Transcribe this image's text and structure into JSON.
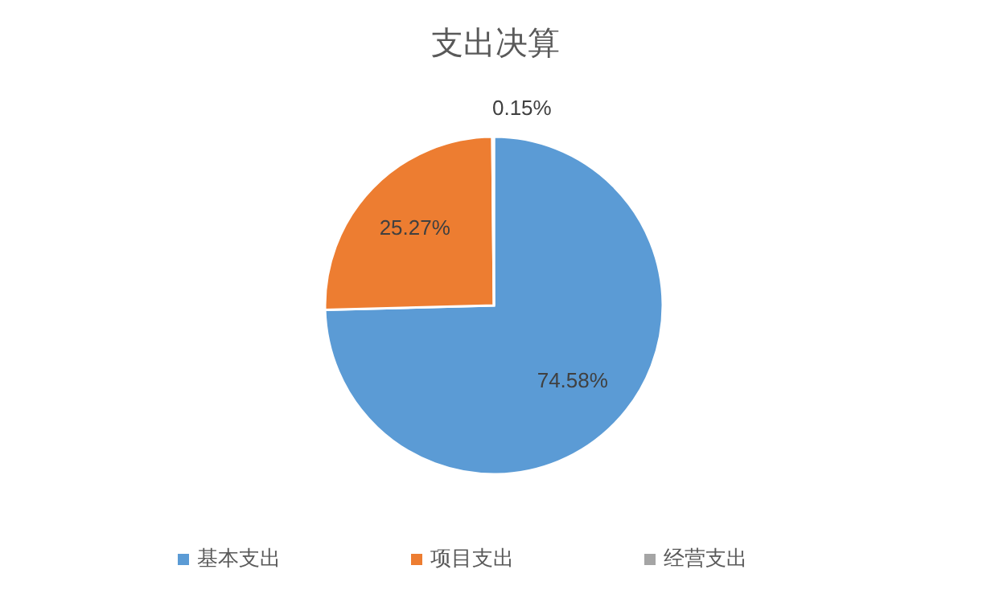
{
  "chart_data": {
    "type": "pie",
    "title": "支出决算",
    "categories": [
      "基本支出",
      "项目支出",
      "经营支出"
    ],
    "values": [
      74.58,
      25.27,
      0.15
    ],
    "colors": [
      "#5b9bd5",
      "#ed7d31",
      "#a5a5a5"
    ],
    "value_labels": [
      "74.58%",
      "25.27%",
      "0.15%"
    ],
    "legend": "bottom"
  }
}
